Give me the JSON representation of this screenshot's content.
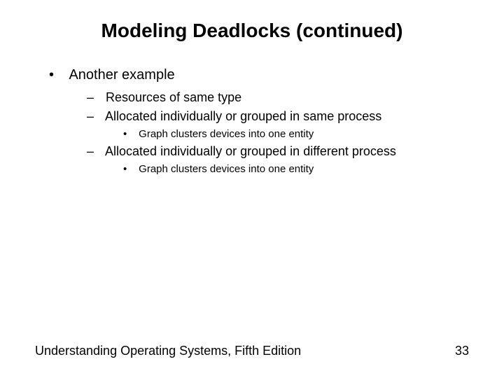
{
  "title": "Modeling Deadlocks (continued)",
  "bullets": {
    "l1_0": "Another example",
    "l2_0": "Resources of same type",
    "l2_1": "Allocated individually or grouped in same process",
    "l3_0": "Graph clusters devices into one entity",
    "l2_2": "Allocated individually or grouped in different process",
    "l3_1": "Graph clusters devices into one entity"
  },
  "footer": {
    "text": "Understanding Operating Systems, Fifth Edition",
    "page": "33"
  },
  "style": {
    "background": "#ffffff",
    "text_color": "#000000",
    "title_fontsize": 28,
    "body_fontsize": 20,
    "sub_fontsize": 18,
    "subsub_fontsize": 15,
    "font_family": "Arial"
  }
}
